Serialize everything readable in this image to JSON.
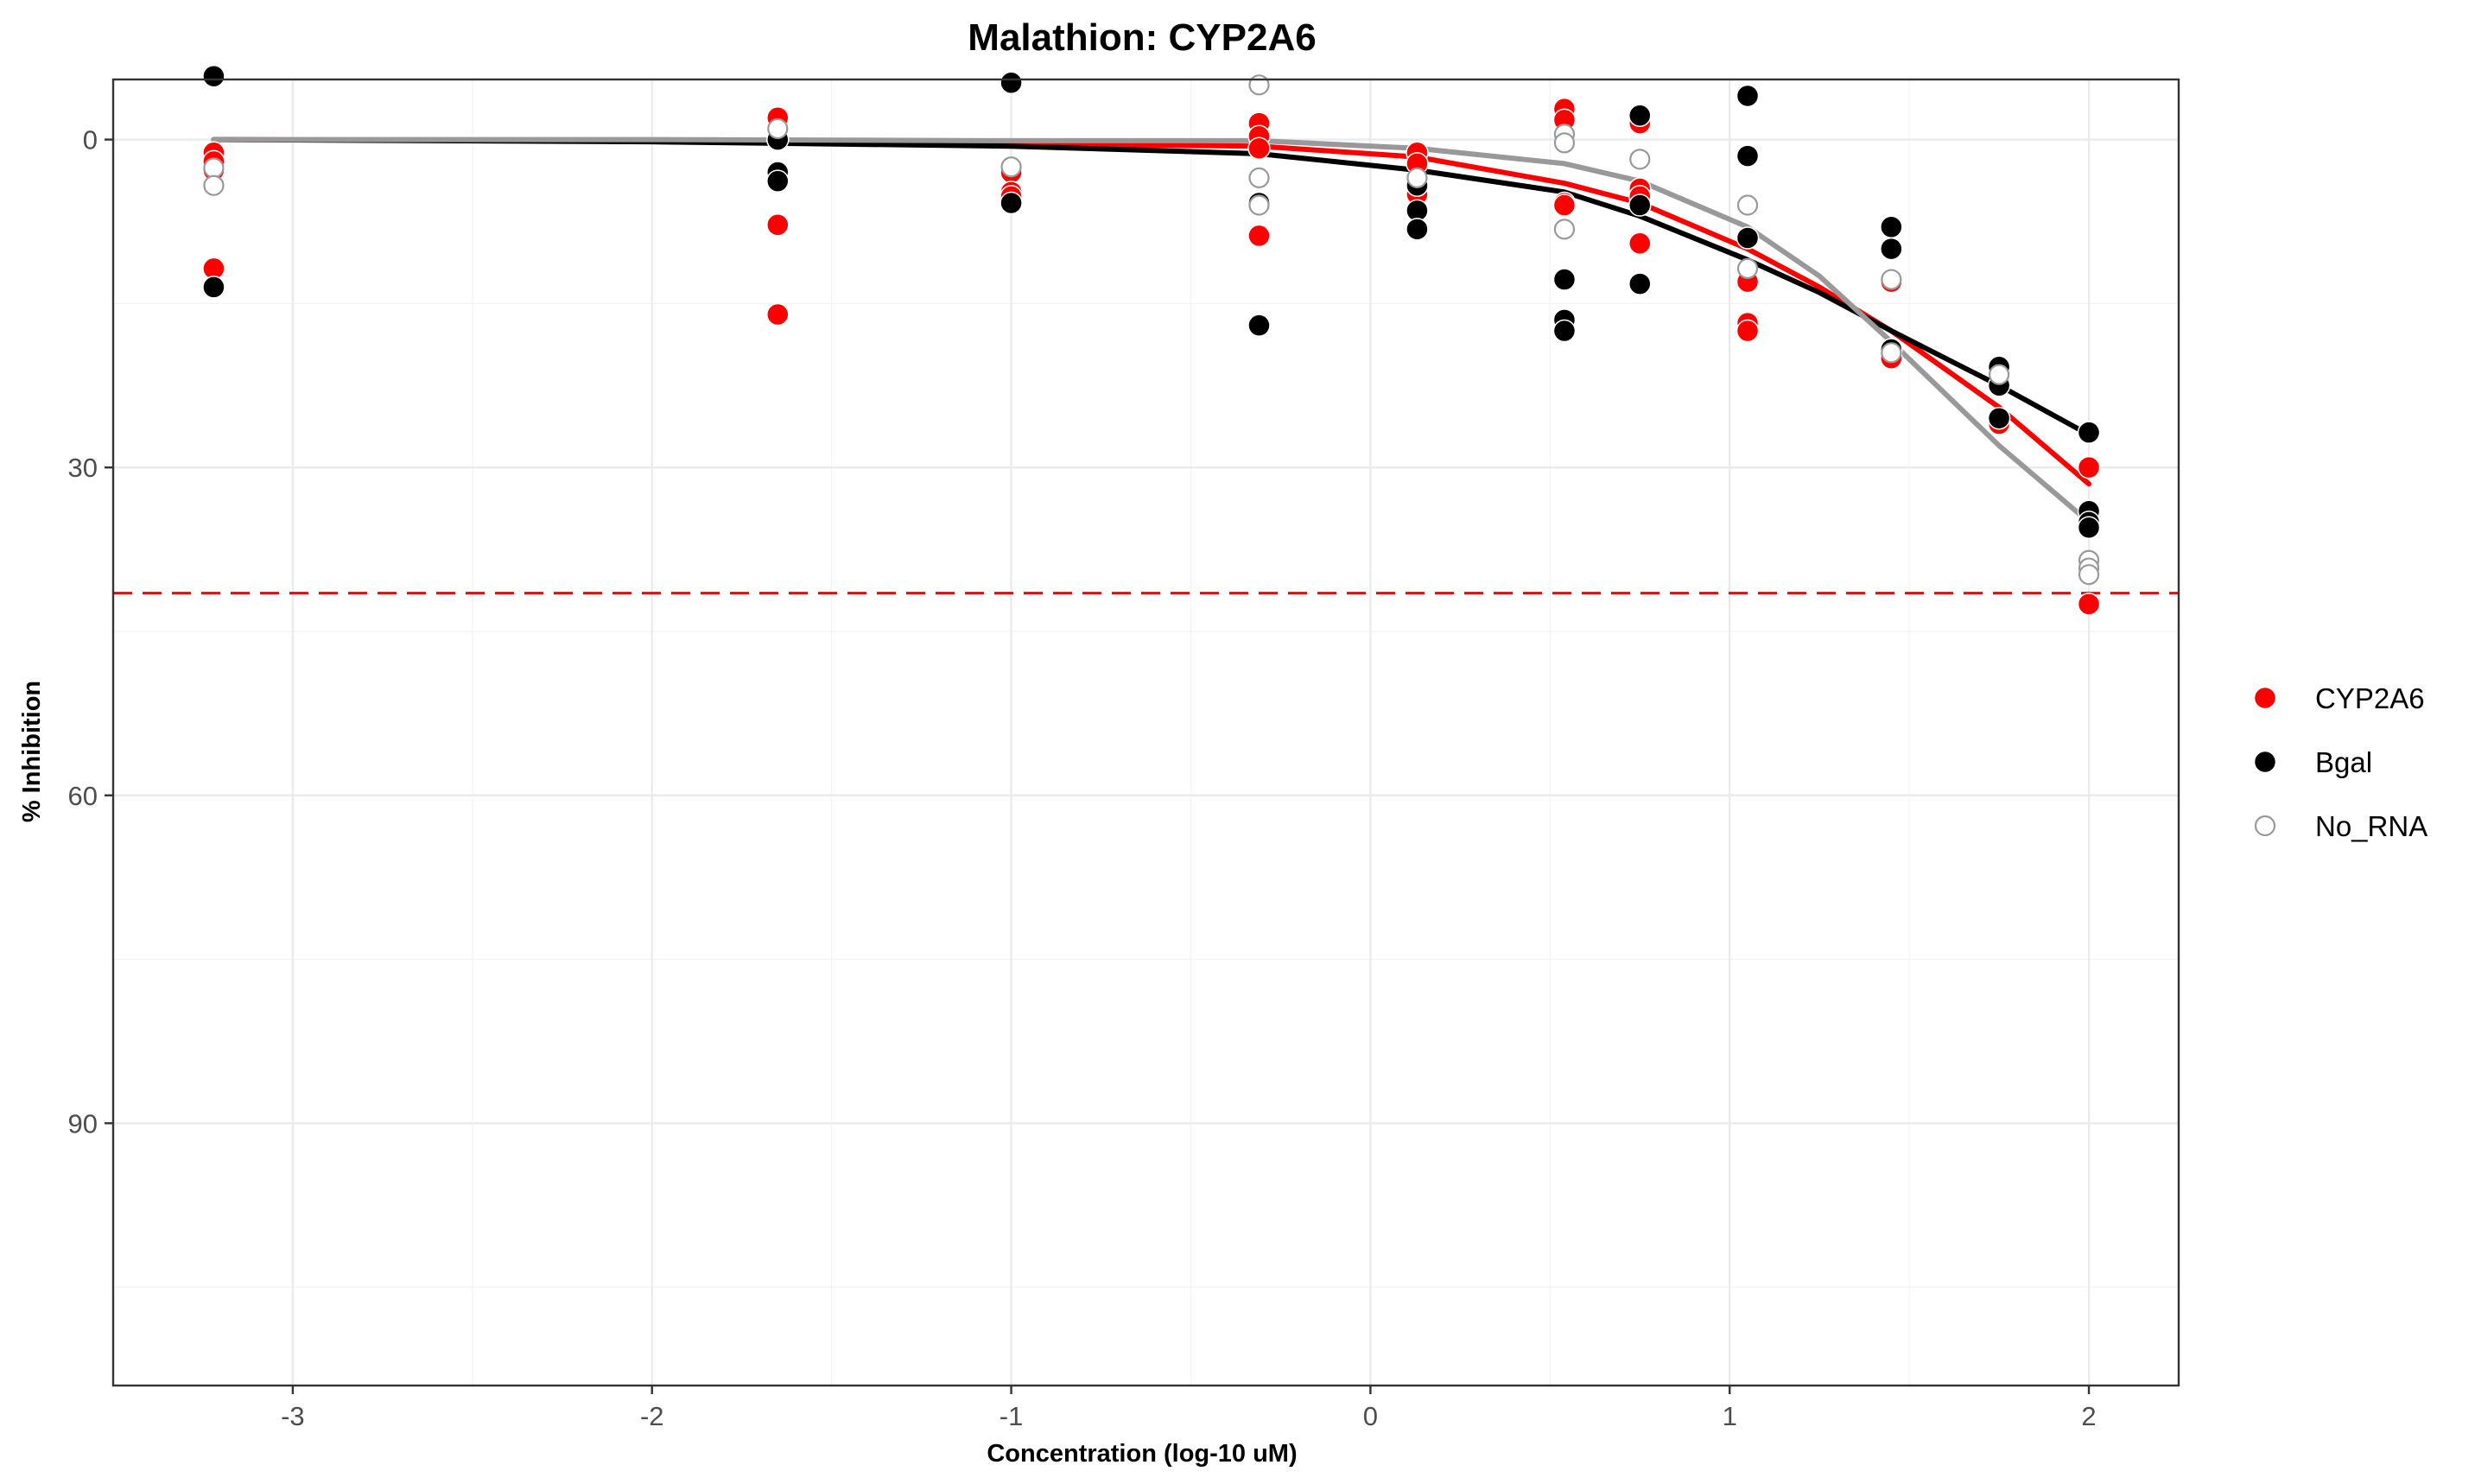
{
  "chart_data": {
    "type": "scatter",
    "title": "Malathion: CYP2A6",
    "xlabel": "Concentration (log-10 uM)",
    "ylabel": "% Inhibition",
    "xlim": [
      -3.5,
      2.25
    ],
    "ylim": [
      -5.5,
      114
    ],
    "y_reversed": true,
    "x_ticks": [
      -3,
      -2,
      -1,
      0,
      1,
      2
    ],
    "y_ticks": [
      0,
      30,
      60,
      90
    ],
    "grid": true,
    "legend_position": "right",
    "threshold_line": {
      "y": 41.5,
      "color": "#ff0000",
      "style": "dashed"
    },
    "series": [
      {
        "name": "CYP2A6",
        "color": "#ff0000",
        "marker": "filled",
        "points": [
          [
            -3.22,
            1.2
          ],
          [
            -3.22,
            2.0
          ],
          [
            -3.22,
            2.8
          ],
          [
            -3.22,
            11.8
          ],
          [
            -1.65,
            -2.0
          ],
          [
            -1.65,
            7.8
          ],
          [
            -1.65,
            16.0
          ],
          [
            -1.0,
            3.0
          ],
          [
            -1.0,
            4.8
          ],
          [
            -1.0,
            5.2
          ],
          [
            -0.31,
            -1.5
          ],
          [
            -0.31,
            -0.3
          ],
          [
            -0.31,
            0.8
          ],
          [
            -0.31,
            8.8
          ],
          [
            0.13,
            1.2
          ],
          [
            0.13,
            2.2
          ],
          [
            0.13,
            4.5
          ],
          [
            0.13,
            5.0
          ],
          [
            0.54,
            -2.8
          ],
          [
            0.54,
            -1.8
          ],
          [
            0.54,
            5.8
          ],
          [
            0.54,
            6.0
          ],
          [
            0.75,
            -1.5
          ],
          [
            0.75,
            4.5
          ],
          [
            0.75,
            5.2
          ],
          [
            0.75,
            9.5
          ],
          [
            1.05,
            13.0
          ],
          [
            1.05,
            16.8
          ],
          [
            1.05,
            17.5
          ],
          [
            1.45,
            13.0
          ],
          [
            1.45,
            20.0
          ],
          [
            1.75,
            21.0
          ],
          [
            1.75,
            26.0
          ],
          [
            2.0,
            30.0
          ],
          [
            2.0,
            42.5
          ]
        ],
        "curve": [
          [
            -3.22,
            0.0
          ],
          [
            -2.0,
            0.1
          ],
          [
            -1.0,
            0.4
          ],
          [
            -0.31,
            0.6
          ],
          [
            0.13,
            1.6
          ],
          [
            0.54,
            4.0
          ],
          [
            0.75,
            5.8
          ],
          [
            1.05,
            10.0
          ],
          [
            1.25,
            13.5
          ],
          [
            1.45,
            17.5
          ],
          [
            1.75,
            24.5
          ],
          [
            2.0,
            31.5
          ]
        ]
      },
      {
        "name": "Bgal",
        "color": "#000000",
        "marker": "filled",
        "points": [
          [
            -3.22,
            -5.8
          ],
          [
            -3.22,
            13.5
          ],
          [
            -1.65,
            0.0
          ],
          [
            -1.65,
            3.0
          ],
          [
            -1.65,
            3.8
          ],
          [
            -1.0,
            -5.2
          ],
          [
            -1.0,
            5.8
          ],
          [
            -0.31,
            5.8
          ],
          [
            -0.31,
            17.0
          ],
          [
            0.13,
            4.2
          ],
          [
            0.13,
            6.5
          ],
          [
            0.13,
            8.2
          ],
          [
            0.54,
            12.8
          ],
          [
            0.54,
            16.5
          ],
          [
            0.54,
            17.5
          ],
          [
            0.75,
            -2.2
          ],
          [
            0.75,
            6.0
          ],
          [
            0.75,
            13.2
          ],
          [
            1.05,
            -4.0
          ],
          [
            1.05,
            1.5
          ],
          [
            1.05,
            9.0
          ],
          [
            1.45,
            8.0
          ],
          [
            1.45,
            10.0
          ],
          [
            1.45,
            19.2
          ],
          [
            1.75,
            20.8
          ],
          [
            1.75,
            22.5
          ],
          [
            1.75,
            25.5
          ],
          [
            2.0,
            26.8
          ],
          [
            2.0,
            34.0
          ],
          [
            2.0,
            35.0
          ],
          [
            2.0,
            35.5
          ]
        ],
        "curve": [
          [
            -3.22,
            0.0
          ],
          [
            -2.0,
            0.2
          ],
          [
            -1.0,
            0.6
          ],
          [
            -0.31,
            1.3
          ],
          [
            0.13,
            2.8
          ],
          [
            0.54,
            4.8
          ],
          [
            0.75,
            7.0
          ],
          [
            1.05,
            11.0
          ],
          [
            1.25,
            14.0
          ],
          [
            1.45,
            17.5
          ],
          [
            1.75,
            22.5
          ],
          [
            2.0,
            27.0
          ]
        ]
      },
      {
        "name": "No_RNA",
        "color": "#999999",
        "marker": "open",
        "points": [
          [
            -3.22,
            2.6
          ],
          [
            -3.22,
            4.2
          ],
          [
            -1.65,
            -1.0
          ],
          [
            -1.0,
            2.5
          ],
          [
            -0.31,
            -5.0
          ],
          [
            -0.31,
            3.5
          ],
          [
            -0.31,
            6.0
          ],
          [
            0.13,
            3.5
          ],
          [
            0.54,
            -0.5
          ],
          [
            0.54,
            0.3
          ],
          [
            0.54,
            8.2
          ],
          [
            0.75,
            1.8
          ],
          [
            1.05,
            6.0
          ],
          [
            1.05,
            11.8
          ],
          [
            1.45,
            12.8
          ],
          [
            1.45,
            19.5
          ],
          [
            1.75,
            21.5
          ],
          [
            2.0,
            38.5
          ],
          [
            2.0,
            39.2
          ],
          [
            2.0,
            39.8
          ]
        ],
        "curve": [
          [
            -3.22,
            0.0
          ],
          [
            -2.0,
            0.0
          ],
          [
            -1.0,
            0.1
          ],
          [
            -0.31,
            0.1
          ],
          [
            0.13,
            0.8
          ],
          [
            0.54,
            2.2
          ],
          [
            0.75,
            3.8
          ],
          [
            1.05,
            8.0
          ],
          [
            1.25,
            12.5
          ],
          [
            1.45,
            18.5
          ],
          [
            1.75,
            28.0
          ],
          [
            2.0,
            35.0
          ]
        ]
      }
    ]
  }
}
